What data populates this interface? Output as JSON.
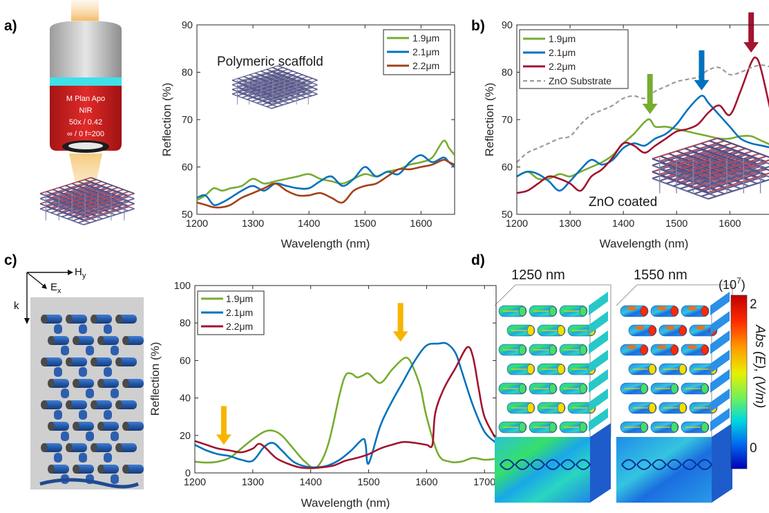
{
  "panels": {
    "a": {
      "label": "a)"
    },
    "b": {
      "label": "b)"
    },
    "c": {
      "label": "c)"
    },
    "d": {
      "label": "d)"
    }
  },
  "objective": {
    "line1": "M Plan Apo",
    "line2": "NIR",
    "line3": "50x / 0.42",
    "line4": "∞ / 0  f=200",
    "body_color": "#d42020",
    "band_color": "#3ee0ea"
  },
  "axes_c": {
    "hy": "H",
    "hy_sub": "y",
    "ex": "E",
    "ex_sub": "x",
    "k": "k"
  },
  "field_maps": {
    "title1": "1250 nm",
    "title2": "1550 nm",
    "scale_exp": "(10",
    "scale_exp_sup": "7",
    "scale_exp_close": ")",
    "scale_max": "2",
    "scale_min": "0",
    "scale_label": "Abs (E),  (V/m)"
  },
  "colors": {
    "green": "#77ac30",
    "blue": "#0072bd",
    "brown": "#a2421a",
    "crimson": "#a2142f",
    "gray": "#9a9a9a",
    "orange": "#f7b500"
  },
  "chart_data": [
    {
      "id": "a",
      "type": "line",
      "title": "",
      "xlabel": "Wavelength (nm)",
      "ylabel": "Reflection (%)",
      "xlim": [
        1200,
        1660
      ],
      "ylim": [
        50,
        90
      ],
      "xticks": [
        1200,
        1300,
        1400,
        1500,
        1600
      ],
      "yticks": [
        50,
        60,
        70,
        80,
        90
      ],
      "legend": "top-right",
      "annotations": [
        {
          "text": "Polymeric scaffold"
        }
      ],
      "series": [
        {
          "name": "1.9μm",
          "color": "green",
          "x": [
            1200,
            1215,
            1230,
            1245,
            1260,
            1280,
            1300,
            1320,
            1340,
            1360,
            1380,
            1400,
            1420,
            1440,
            1460,
            1480,
            1500,
            1520,
            1540,
            1560,
            1580,
            1600,
            1620,
            1640,
            1650,
            1660
          ],
          "y": [
            53,
            54,
            55.5,
            55,
            55.5,
            56,
            57.5,
            56.5,
            57,
            57.5,
            58,
            58.5,
            57.5,
            57,
            56.5,
            57.5,
            58.5,
            58,
            59,
            59.5,
            60.5,
            61,
            62,
            65.5,
            64,
            62.5
          ]
        },
        {
          "name": "2.1μm",
          "color": "blue",
          "x": [
            1200,
            1215,
            1230,
            1245,
            1260,
            1280,
            1300,
            1320,
            1340,
            1360,
            1380,
            1400,
            1420,
            1440,
            1460,
            1480,
            1500,
            1520,
            1540,
            1560,
            1580,
            1600,
            1620,
            1640,
            1650,
            1660
          ],
          "y": [
            53.5,
            54,
            52,
            52.5,
            53.5,
            55,
            56,
            55,
            56.5,
            56,
            55.5,
            55.5,
            57,
            58,
            56,
            57.5,
            60,
            58,
            59,
            58.5,
            61,
            62.5,
            61,
            62,
            61,
            60
          ]
        },
        {
          "name": "2.2μm",
          "color": "brown",
          "x": [
            1200,
            1215,
            1230,
            1245,
            1260,
            1280,
            1300,
            1320,
            1340,
            1360,
            1380,
            1400,
            1420,
            1440,
            1460,
            1480,
            1500,
            1520,
            1540,
            1560,
            1580,
            1600,
            1620,
            1640,
            1650,
            1660
          ],
          "y": [
            52.5,
            52,
            51.5,
            51.5,
            52,
            53.5,
            54.5,
            55.5,
            56.5,
            55,
            54,
            54,
            54.5,
            53.5,
            52.5,
            55,
            56,
            56.5,
            58,
            59.5,
            59.5,
            60,
            60.5,
            61.5,
            61,
            60.5
          ]
        }
      ]
    },
    {
      "id": "b",
      "type": "line",
      "title": "",
      "xlabel": "Wavelength (nm)",
      "ylabel": "Reflection (%)",
      "xlim": [
        1200,
        1680
      ],
      "ylim": [
        50,
        90
      ],
      "xticks": [
        1200,
        1300,
        1400,
        1500,
        1600
      ],
      "yticks": [
        50,
        60,
        70,
        80,
        90
      ],
      "legend": "top-left",
      "annotations": [
        {
          "text": "ZnO coated"
        }
      ],
      "arrows": [
        {
          "x": 1450,
          "color": "green"
        },
        {
          "x": 1547,
          "color": "blue"
        },
        {
          "x": 1640,
          "color": "crimson"
        }
      ],
      "series": [
        {
          "name": "1.9μm",
          "color": "green",
          "x": [
            1200,
            1220,
            1240,
            1260,
            1280,
            1300,
            1320,
            1340,
            1360,
            1380,
            1400,
            1420,
            1440,
            1450,
            1460,
            1480,
            1500,
            1520,
            1540,
            1560,
            1580,
            1600,
            1620,
            1640,
            1660,
            1680
          ],
          "y": [
            58,
            59,
            57.5,
            57.5,
            58.5,
            58,
            59,
            60,
            61,
            62.5,
            65,
            67,
            69.5,
            70,
            68.5,
            68.5,
            68,
            67.5,
            67,
            66.5,
            66,
            66,
            66.5,
            66.5,
            65.5,
            64.5
          ]
        },
        {
          "name": "2.1μm",
          "color": "blue",
          "x": [
            1200,
            1220,
            1240,
            1260,
            1280,
            1300,
            1320,
            1340,
            1360,
            1380,
            1400,
            1420,
            1440,
            1460,
            1480,
            1500,
            1520,
            1540,
            1550,
            1560,
            1580,
            1600,
            1620,
            1640,
            1660,
            1680
          ],
          "y": [
            58,
            59,
            58.5,
            57,
            55,
            57,
            59.5,
            61.5,
            60.5,
            61.5,
            64,
            65,
            64.5,
            66,
            67,
            69,
            72,
            74.5,
            75,
            73.5,
            71,
            68.5,
            66,
            65,
            64.5,
            64
          ]
        },
        {
          "name": "2.2μm",
          "color": "crimson",
          "x": [
            1200,
            1220,
            1240,
            1260,
            1280,
            1300,
            1320,
            1340,
            1360,
            1380,
            1400,
            1420,
            1440,
            1460,
            1480,
            1500,
            1520,
            1540,
            1560,
            1580,
            1600,
            1620,
            1640,
            1650,
            1660,
            1680
          ],
          "y": [
            54.5,
            55,
            56.5,
            58,
            57.5,
            56.5,
            55,
            58,
            59.5,
            62,
            65,
            64.5,
            63,
            64.5,
            66,
            67.5,
            68,
            69,
            71.5,
            73,
            71,
            76,
            82,
            83,
            80,
            70
          ]
        },
        {
          "name": "ZnO Substrate",
          "color": "gray",
          "dashed": true,
          "x": [
            1200,
            1220,
            1240,
            1260,
            1280,
            1300,
            1320,
            1340,
            1360,
            1380,
            1400,
            1420,
            1440,
            1460,
            1480,
            1500,
            1520,
            1540,
            1560,
            1580,
            1600,
            1620,
            1640,
            1660,
            1680
          ],
          "y": [
            61,
            63,
            64,
            65,
            66,
            66.5,
            69,
            71,
            72,
            73,
            74.5,
            75,
            74.5,
            76,
            77,
            78,
            78.5,
            79,
            80.5,
            81,
            79.5,
            80,
            81,
            81.5,
            81
          ]
        }
      ]
    },
    {
      "id": "c",
      "type": "line",
      "title": "",
      "xlabel": "Wavelength (nm)",
      "ylabel": "Reflection (%)",
      "xlim": [
        1200,
        1720
      ],
      "ylim": [
        0,
        100
      ],
      "xticks": [
        1200,
        1300,
        1400,
        1500,
        1600,
        1700
      ],
      "yticks": [
        0,
        20,
        40,
        60,
        80,
        100
      ],
      "legend": "top-left",
      "arrows": [
        {
          "x": 1250,
          "color": "orange"
        },
        {
          "x": 1555,
          "color": "orange"
        }
      ],
      "series": [
        {
          "name": "1.9μm",
          "color": "green",
          "x": [
            1200,
            1220,
            1240,
            1260,
            1280,
            1300,
            1320,
            1335,
            1350,
            1370,
            1390,
            1410,
            1430,
            1450,
            1460,
            1470,
            1480,
            1490,
            1500,
            1520,
            1540,
            1560,
            1570,
            1580,
            1590,
            1600,
            1620,
            1640,
            1660,
            1680,
            1700,
            1720
          ],
          "y": [
            6,
            5.5,
            6,
            8,
            13,
            18,
            22,
            22.5,
            20,
            13,
            6,
            3,
            15,
            42,
            52,
            53,
            51,
            52,
            53,
            48,
            55,
            61,
            60.5,
            54,
            45,
            30,
            10,
            6,
            6,
            8,
            7,
            7.5
          ]
        },
        {
          "name": "2.1μm",
          "color": "blue",
          "x": [
            1200,
            1220,
            1240,
            1260,
            1280,
            1300,
            1320,
            1335,
            1350,
            1370,
            1390,
            1410,
            1430,
            1450,
            1470,
            1490,
            1495,
            1500,
            1520,
            1540,
            1560,
            1580,
            1600,
            1620,
            1635,
            1650,
            1660,
            1680,
            1700,
            1720
          ],
          "y": [
            15,
            12,
            10,
            9,
            7,
            6.5,
            14,
            16,
            12,
            6,
            3.5,
            3,
            4,
            7,
            12,
            18,
            15,
            5,
            25,
            38,
            49,
            60,
            68,
            69,
            69,
            64,
            55,
            36,
            22,
            16
          ]
        },
        {
          "name": "2.2μm",
          "color": "crimson",
          "x": [
            1200,
            1220,
            1240,
            1260,
            1280,
            1300,
            1310,
            1320,
            1340,
            1360,
            1380,
            1400,
            1420,
            1440,
            1460,
            1480,
            1500,
            1520,
            1540,
            1560,
            1580,
            1600,
            1610,
            1615,
            1630,
            1650,
            1670,
            1680,
            1690,
            1700,
            1720
          ],
          "y": [
            17,
            15,
            13,
            12,
            11,
            13,
            15.5,
            14,
            8,
            5,
            3,
            2.5,
            3,
            4,
            6.5,
            8,
            10,
            13,
            15,
            16.5,
            16,
            15,
            15,
            32,
            45,
            56,
            67,
            62,
            45,
            30,
            18
          ]
        }
      ]
    }
  ]
}
